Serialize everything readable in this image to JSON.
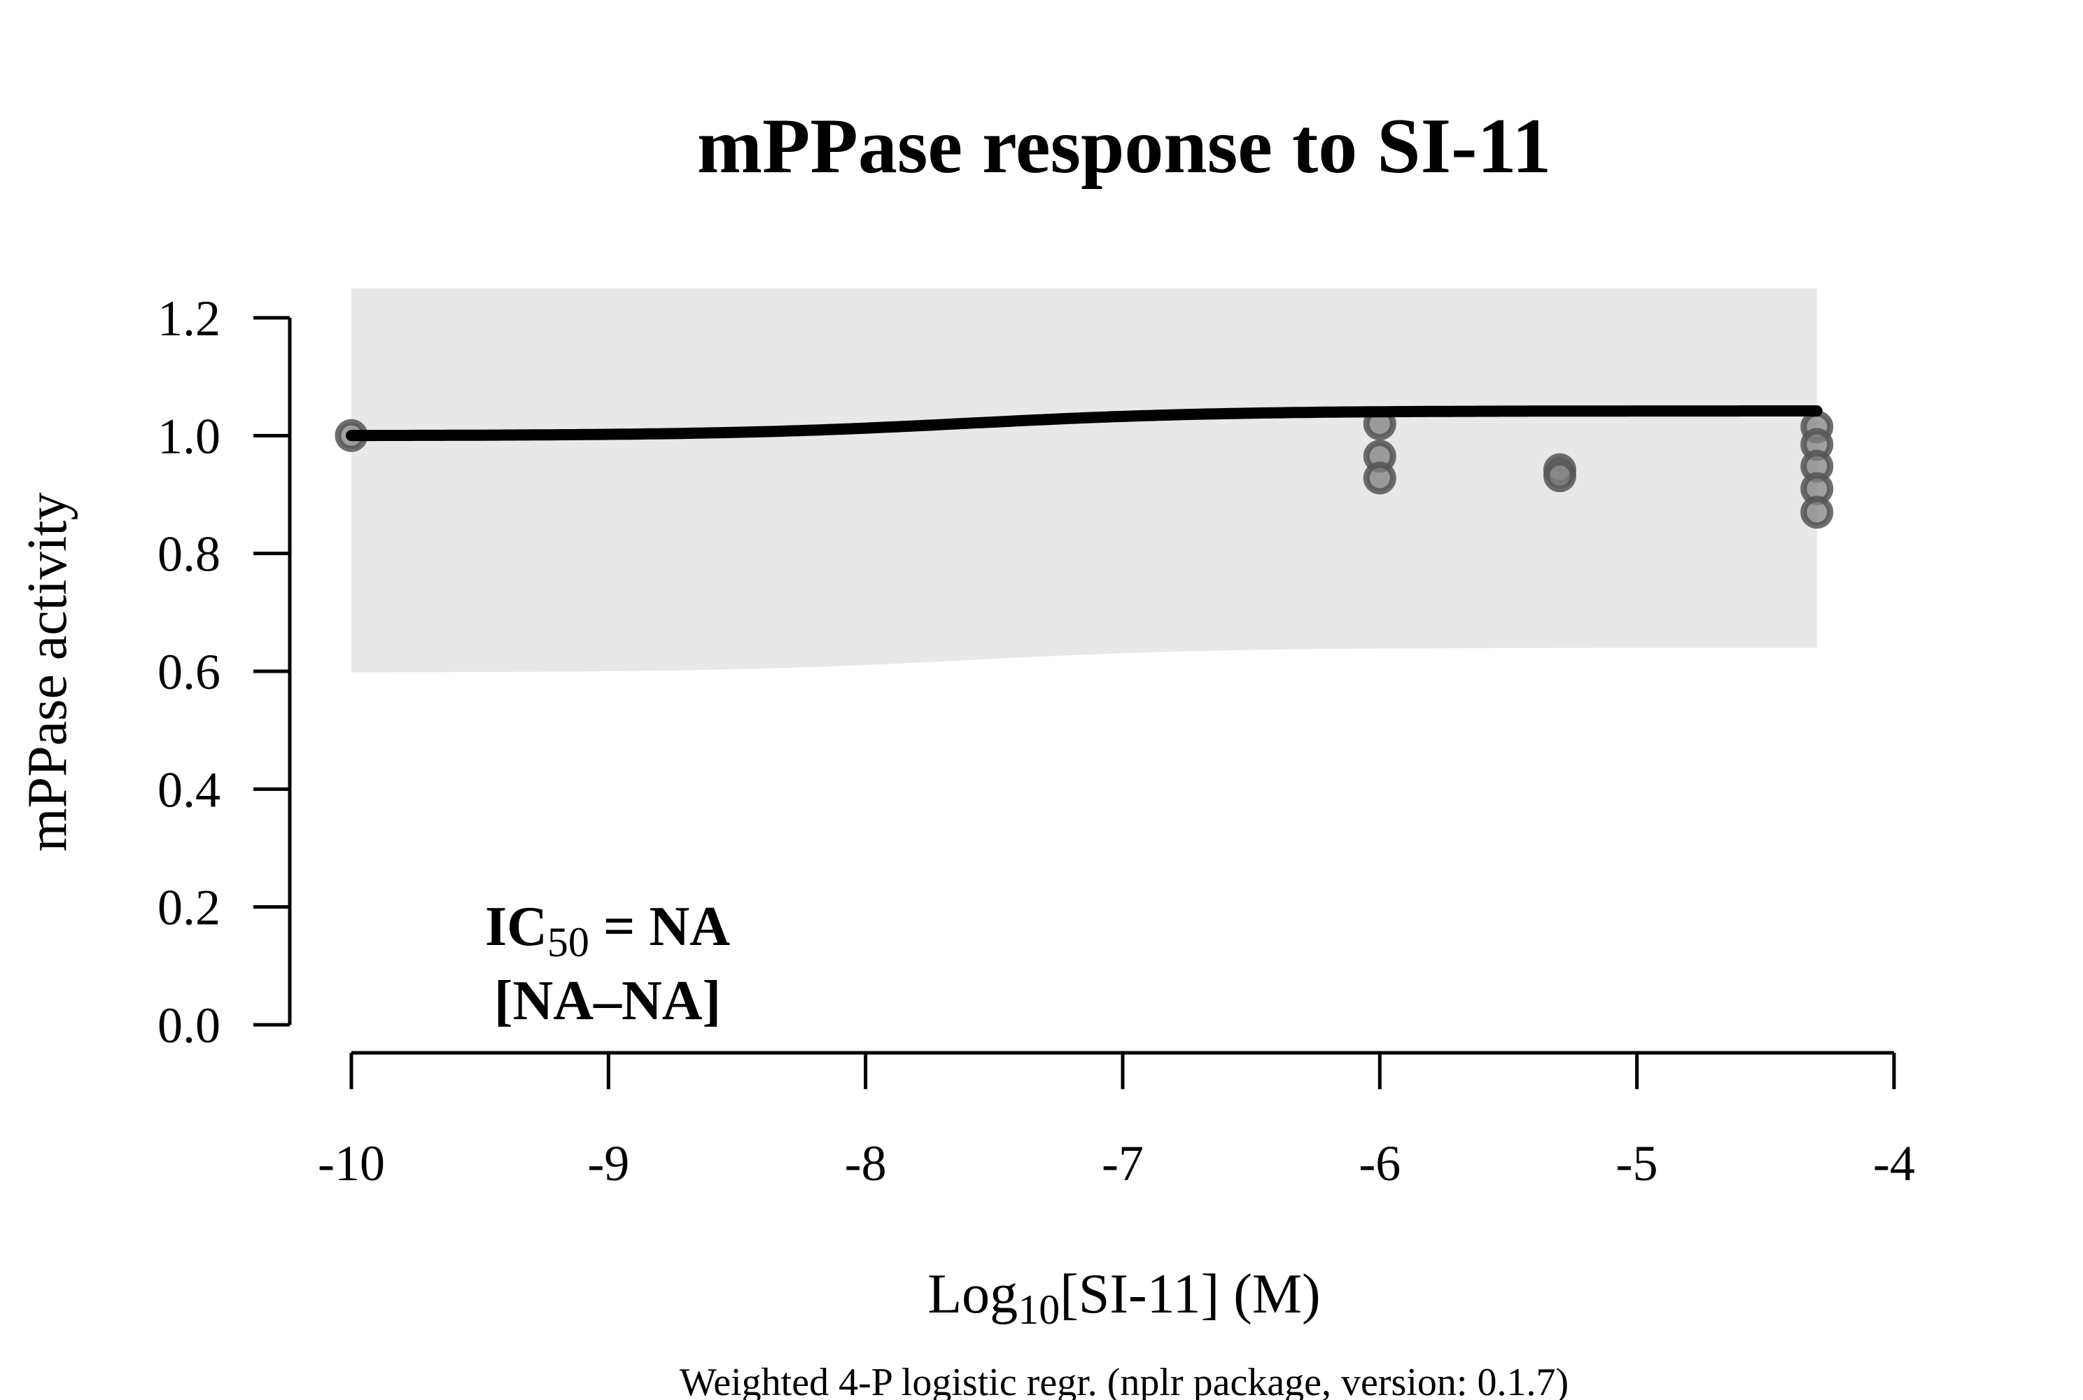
{
  "chart_data": {
    "type": "scatter",
    "title": "mPPase response to SI-11",
    "xlabel": {
      "prefix": "Log",
      "subscript": "10",
      "suffix": "[SI-11] (M)"
    },
    "ylabel": "mPPase activity",
    "footnote": "Weighted 4-P logistic regr. (nplr package, version: 0.1.7)",
    "annotation": {
      "line1_prefix": "IC",
      "line1_subscript": "50",
      "line1_suffix": " = NA",
      "line2": "[NA–NA]"
    },
    "xlim": [
      -10,
      -4
    ],
    "ylim": [
      0,
      1.2
    ],
    "x_ticks": [
      "-10",
      "-9",
      "-8",
      "-7",
      "-6",
      "-5",
      "-4"
    ],
    "y_ticks": [
      "0.0",
      "0.2",
      "0.4",
      "0.6",
      "0.8",
      "1.0",
      "1.2"
    ],
    "points": [
      {
        "x": -10,
        "y": 1.0
      },
      {
        "x": -6,
        "y": 1.02
      },
      {
        "x": -6,
        "y": 0.965
      },
      {
        "x": -6,
        "y": 0.928
      },
      {
        "x": -5.3,
        "y": 0.942
      },
      {
        "x": -5.3,
        "y": 0.932
      },
      {
        "x": -4.3,
        "y": 1.015
      },
      {
        "x": -4.3,
        "y": 0.985
      },
      {
        "x": -4.3,
        "y": 0.948
      },
      {
        "x": -4.3,
        "y": 0.91
      },
      {
        "x": -4.3,
        "y": 0.87
      }
    ],
    "fit": {
      "model": "4-P logistic",
      "bottom": 1.0,
      "top": 1.042,
      "xmid": -7.6,
      "scal": 0.12,
      "x_range": [
        -10,
        -4.3
      ]
    },
    "confidence_band": {
      "lower_bottom": 0.598,
      "lower_top": 0.64,
      "upper": 1.25
    },
    "colors": {
      "band": "#e8e8e8",
      "point_fill": "#808080",
      "point_stroke": "#555555",
      "line": "#000000"
    }
  }
}
